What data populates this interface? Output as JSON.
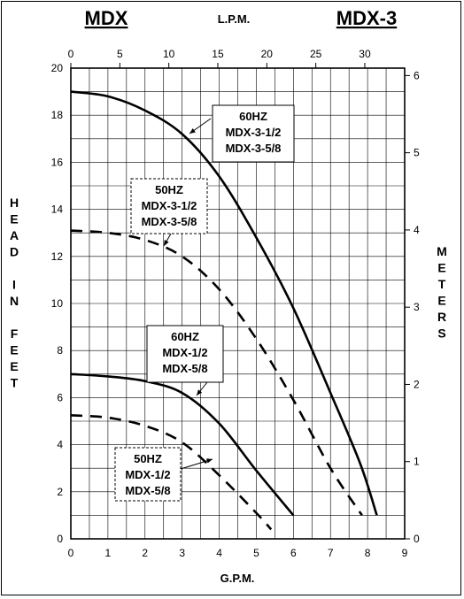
{
  "chart_data": {
    "type": "line",
    "title_left": "MDX",
    "title_right": "MDX-3",
    "top_axis_label": "L.P.M.",
    "xlabel": "G.P.M.",
    "ylabel_left_letters": [
      "H",
      "E",
      "A",
      "D",
      "",
      "I",
      "N",
      "",
      "F",
      "E",
      "E",
      "T"
    ],
    "ylabel_right_letters": [
      "M",
      "E",
      "T",
      "E",
      "R",
      "S"
    ],
    "xlim": [
      0,
      9
    ],
    "ylim": [
      0,
      20
    ],
    "top_xlim": [
      0,
      34.07
    ],
    "right_ylim": [
      0,
      6.096
    ],
    "x_ticks": [
      "0",
      "1",
      "2",
      "3",
      "4",
      "5",
      "6",
      "7",
      "8",
      "9"
    ],
    "y_ticks": [
      "0",
      "2",
      "4",
      "6",
      "8",
      "10",
      "12",
      "14",
      "16",
      "18",
      "20"
    ],
    "top_ticks": [
      "0",
      "5",
      "10",
      "15",
      "20",
      "25",
      "30"
    ],
    "right_ticks": [
      "0",
      "1",
      "2",
      "3",
      "4",
      "5",
      "6"
    ],
    "grid": true,
    "series": [
      {
        "name": "60HZ MDX-3-1/2 MDX-3-5/8",
        "style": "solid",
        "x": [
          0,
          1,
          2,
          3,
          4,
          5,
          6,
          7,
          7.8,
          8.25
        ],
        "y": [
          19.0,
          18.8,
          18.2,
          17.2,
          15.4,
          12.8,
          9.8,
          6.2,
          3.2,
          1.0
        ]
      },
      {
        "name": "50HZ MDX-3-1/2 MDX-3-5/8",
        "style": "dashed",
        "x": [
          0,
          1,
          2,
          3,
          4,
          5,
          6,
          7,
          7.85
        ],
        "y": [
          13.1,
          13.0,
          12.7,
          12.0,
          10.6,
          8.5,
          5.9,
          3.0,
          1.0
        ]
      },
      {
        "name": "60HZ MDX-1/2 MDX-5/8",
        "style": "solid",
        "x": [
          0,
          1,
          2,
          3,
          4,
          5,
          6
        ],
        "y": [
          7.0,
          6.9,
          6.7,
          6.2,
          4.9,
          2.9,
          1.0
        ]
      },
      {
        "name": "50HZ MDX-1/2 MDX-5/8",
        "style": "dashed",
        "x": [
          0,
          1,
          2,
          3,
          4,
          5,
          5.4
        ],
        "y": [
          5.25,
          5.15,
          4.8,
          4.1,
          2.7,
          1.1,
          0.4
        ]
      }
    ],
    "annotations": [
      {
        "lines": [
          "60HZ",
          "MDX-3-1/2",
          "MDX-3-5/8"
        ],
        "box": "solid"
      },
      {
        "lines": [
          "50HZ",
          "MDX-3-1/2",
          "MDX-3-5/8"
        ],
        "box": "dashed"
      },
      {
        "lines": [
          "60HZ",
          "MDX-1/2",
          "MDX-5/8"
        ],
        "box": "solid"
      },
      {
        "lines": [
          "50HZ",
          "MDX-1/2",
          "MDX-5/8"
        ],
        "box": "dashed"
      }
    ]
  }
}
